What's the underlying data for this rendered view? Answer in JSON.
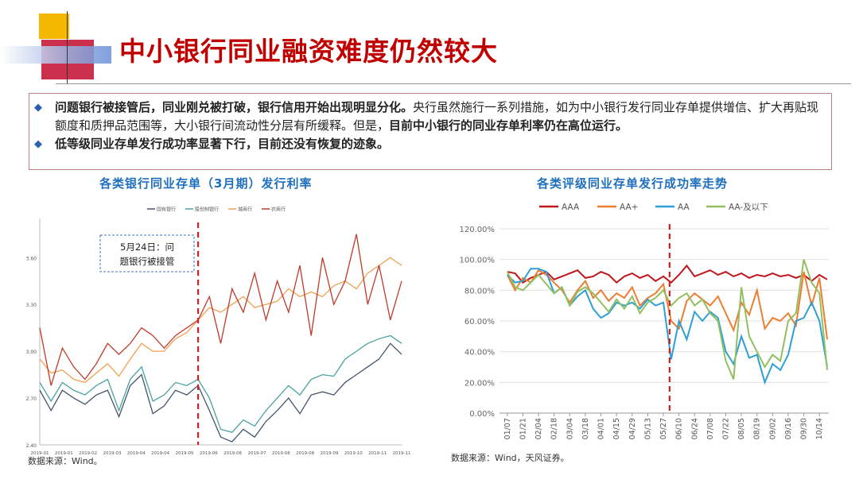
{
  "slide": {
    "title": "中小银行同业融资难度仍然较大",
    "bullet1": {
      "bold1": "问题银行被接管后，同业刚兑被打破，银行信用开始出现明显分化。",
      "normal": "央行虽然施行一系列措施，如为中小银行发行同业存单提供增信、扩大再贴现额度和质押品范围等，大小银行间流动性分层有所缓释。但是，",
      "bold2": "目前中小银行的同业存单利率仍在高位运行。"
    },
    "bullet2": "低等级同业存单发行成功率显著下行，目前还没有恢复的迹象。",
    "colors": {
      "title": "#c00000",
      "chart_title": "#1f6fbf",
      "bullet": "#3060b0",
      "event_line": "#d02020"
    }
  },
  "chart_data": [
    {
      "type": "line",
      "title": "各类银行同业存单（3月期）发行利率",
      "source": "数据来源：Wind。",
      "annotation": "5月24日：问题银行被接管",
      "annotation_lines": [
        "5月24日：问",
        "题银行被接管"
      ],
      "y_ticks": [
        "2.40",
        "2.70",
        "3.00",
        "3.30",
        "3.60"
      ],
      "ylim": [
        2.4,
        3.8
      ],
      "x_ticks": [
        "2019-01",
        "2019-01",
        "2019-02",
        "2019-03",
        "2019-04",
        "2019-04",
        "2019-05",
        "2019-06",
        "2019-06",
        "2019-07",
        "2019-08",
        "2019-08",
        "2019-09",
        "2019-10",
        "2019-11",
        "2019-11"
      ],
      "x_range": [
        0,
        96
      ],
      "event_x": 42,
      "series": [
        {
          "name": "国有银行",
          "color": "#44546a",
          "x": [
            0,
            3,
            6,
            9,
            12,
            15,
            18,
            21,
            24,
            27,
            30,
            33,
            36,
            39,
            42,
            45,
            48,
            51,
            54,
            57,
            60,
            63,
            66,
            69,
            72,
            75,
            78,
            81,
            84,
            87,
            90,
            93,
            96
          ],
          "values": [
            2.75,
            2.62,
            2.75,
            2.7,
            2.66,
            2.72,
            2.75,
            2.58,
            2.78,
            2.85,
            2.6,
            2.65,
            2.75,
            2.72,
            2.78,
            2.62,
            2.45,
            2.42,
            2.5,
            2.45,
            2.55,
            2.62,
            2.7,
            2.6,
            2.72,
            2.74,
            2.72,
            2.8,
            2.85,
            2.9,
            2.95,
            3.05,
            2.98
          ]
        },
        {
          "name": "股份制银行",
          "color": "#4aa3a0",
          "x": [
            0,
            3,
            6,
            9,
            12,
            15,
            18,
            21,
            24,
            27,
            30,
            33,
            36,
            39,
            42,
            45,
            48,
            51,
            54,
            57,
            60,
            63,
            66,
            69,
            72,
            75,
            78,
            81,
            84,
            87,
            90,
            93,
            96
          ],
          "values": [
            2.8,
            2.68,
            2.8,
            2.75,
            2.72,
            2.78,
            2.82,
            2.62,
            2.82,
            2.9,
            2.68,
            2.72,
            2.8,
            2.78,
            2.82,
            2.7,
            2.5,
            2.48,
            2.56,
            2.52,
            2.62,
            2.7,
            2.78,
            2.72,
            2.82,
            2.85,
            2.84,
            2.95,
            3.0,
            3.05,
            3.08,
            3.1,
            3.05
          ]
        },
        {
          "name": "城商行",
          "color": "#f0a050",
          "x": [
            0,
            3,
            6,
            9,
            12,
            15,
            18,
            21,
            24,
            27,
            30,
            33,
            36,
            39,
            42,
            45,
            48,
            51,
            54,
            57,
            60,
            63,
            66,
            69,
            72,
            75,
            78,
            81,
            84,
            87,
            90,
            93,
            96
          ],
          "values": [
            2.95,
            2.86,
            2.88,
            2.82,
            2.8,
            2.86,
            2.92,
            2.84,
            2.95,
            3.05,
            3.0,
            3.0,
            3.08,
            3.12,
            3.2,
            3.28,
            3.25,
            3.3,
            3.35,
            3.28,
            3.3,
            3.32,
            3.4,
            3.35,
            3.38,
            3.35,
            3.42,
            3.45,
            3.4,
            3.5,
            3.55,
            3.6,
            3.55
          ]
        },
        {
          "name": "农商行",
          "color": "#c0392b",
          "x": [
            0,
            3,
            6,
            9,
            12,
            15,
            18,
            21,
            24,
            27,
            30,
            33,
            36,
            39,
            42,
            45,
            48,
            51,
            54,
            57,
            60,
            63,
            66,
            69,
            72,
            75,
            78,
            81,
            84,
            87,
            90,
            93,
            96
          ],
          "values": [
            3.15,
            2.78,
            3.02,
            2.9,
            2.82,
            2.92,
            3.05,
            2.98,
            3.05,
            3.15,
            3.1,
            3.02,
            3.1,
            3.15,
            3.2,
            3.35,
            3.05,
            3.4,
            3.25,
            3.5,
            3.2,
            3.45,
            3.25,
            3.55,
            3.1,
            3.6,
            3.3,
            3.45,
            3.75,
            3.3,
            3.55,
            3.2,
            3.45
          ]
        }
      ]
    },
    {
      "type": "line",
      "title": "各类评级同业存单发行成功率走势",
      "source": "数据来源：Wind，天风证券。",
      "y_ticks": [
        "0.00%",
        "20.00%",
        "40.00%",
        "60.00%",
        "80.00%",
        "100.00%",
        "120.00%"
      ],
      "ylim": [
        0,
        120
      ],
      "categories": [
        "01/07",
        "01/21",
        "02/04",
        "02/18",
        "03/04",
        "03/18",
        "04/01",
        "04/15",
        "04/29",
        "05/13",
        "05/27",
        "06/10",
        "06/24",
        "07/08",
        "07/22",
        "08/05",
        "08/19",
        "09/02",
        "09/16",
        "09/30",
        "10/14"
      ],
      "event_x": 10.4,
      "series": [
        {
          "name": "AAA",
          "color": "#c0151b",
          "x": [
            0,
            0.5,
            1,
            1.5,
            2,
            2.5,
            3,
            3.5,
            4,
            4.5,
            5,
            5.5,
            6,
            6.5,
            7,
            7.5,
            8,
            8.5,
            9,
            9.5,
            10,
            10.5,
            11,
            11.5,
            12,
            12.5,
            13,
            13.5,
            14,
            14.5,
            15,
            15.5,
            16,
            16.5,
            17,
            17.5,
            18,
            18.5,
            19,
            19.5,
            20,
            20.5
          ],
          "values": [
            92,
            91,
            85,
            88,
            90,
            92,
            87,
            89,
            91,
            93,
            88,
            89,
            92,
            90,
            85,
            89,
            91,
            88,
            90,
            86,
            89,
            85,
            90,
            96,
            89,
            91,
            93,
            90,
            92,
            89,
            91,
            88,
            90,
            89,
            91,
            89,
            90,
            88,
            90,
            86,
            90,
            87
          ]
        },
        {
          "name": "AA+",
          "color": "#ed7d31",
          "x": [
            0,
            0.5,
            1,
            1.5,
            2,
            2.5,
            3,
            3.5,
            4,
            4.5,
            5,
            5.5,
            6,
            6.5,
            7,
            7.5,
            8,
            8.5,
            9,
            9.5,
            10,
            10.5,
            11,
            11.5,
            12,
            12.5,
            13,
            13.5,
            14,
            14.5,
            15,
            15.5,
            16,
            16.5,
            17,
            17.5,
            18,
            18.5,
            19,
            19.5,
            20,
            20.5
          ],
          "values": [
            90,
            80,
            88,
            85,
            93,
            90,
            85,
            80,
            72,
            80,
            86,
            75,
            80,
            73,
            78,
            75,
            82,
            70,
            75,
            78,
            84,
            60,
            55,
            73,
            78,
            74,
            70,
            76,
            65,
            54,
            72,
            64,
            80,
            55,
            62,
            60,
            65,
            57,
            92,
            70,
            88,
            48
          ]
        },
        {
          "name": "AA",
          "color": "#2e9fd6",
          "x": [
            0,
            0.5,
            1,
            1.5,
            2,
            2.5,
            3,
            3.5,
            4,
            4.5,
            5,
            5.5,
            6,
            6.5,
            7,
            7.5,
            8,
            8.5,
            9,
            9.5,
            10,
            10.5,
            11,
            11.5,
            12,
            12.5,
            13,
            13.5,
            14,
            14.5,
            15,
            15.5,
            16,
            16.5,
            17,
            17.5,
            18,
            18.5,
            19,
            19.5,
            20,
            20.5
          ],
          "values": [
            90,
            85,
            86,
            94,
            94,
            92,
            78,
            82,
            70,
            76,
            80,
            68,
            62,
            65,
            72,
            70,
            72,
            68,
            74,
            70,
            72,
            35,
            60,
            48,
            66,
            60,
            66,
            62,
            40,
            32,
            50,
            36,
            38,
            20,
            32,
            28,
            38,
            60,
            62,
            72,
            60,
            30
          ]
        },
        {
          "name": "AA-及以下",
          "color": "#92c060",
          "x": [
            0,
            0.5,
            1,
            1.5,
            2,
            2.5,
            3,
            3.5,
            4,
            4.5,
            5,
            5.5,
            6,
            6.5,
            7,
            7.5,
            8,
            8.5,
            9,
            9.5,
            10,
            10.5,
            11,
            11.5,
            12,
            12.5,
            13,
            13.5,
            14,
            14.5,
            15,
            15.5,
            16,
            16.5,
            17,
            17.5,
            18,
            18.5,
            19,
            19.5,
            20,
            20.5
          ],
          "values": [
            92,
            82,
            80,
            85,
            90,
            84,
            78,
            82,
            70,
            79,
            82,
            78,
            72,
            66,
            74,
            68,
            76,
            65,
            72,
            75,
            80,
            70,
            75,
            78,
            70,
            74,
            65,
            60,
            34,
            22,
            82,
            50,
            40,
            30,
            38,
            34,
            60,
            65,
            100,
            85,
            78,
            28
          ]
        }
      ]
    }
  ]
}
